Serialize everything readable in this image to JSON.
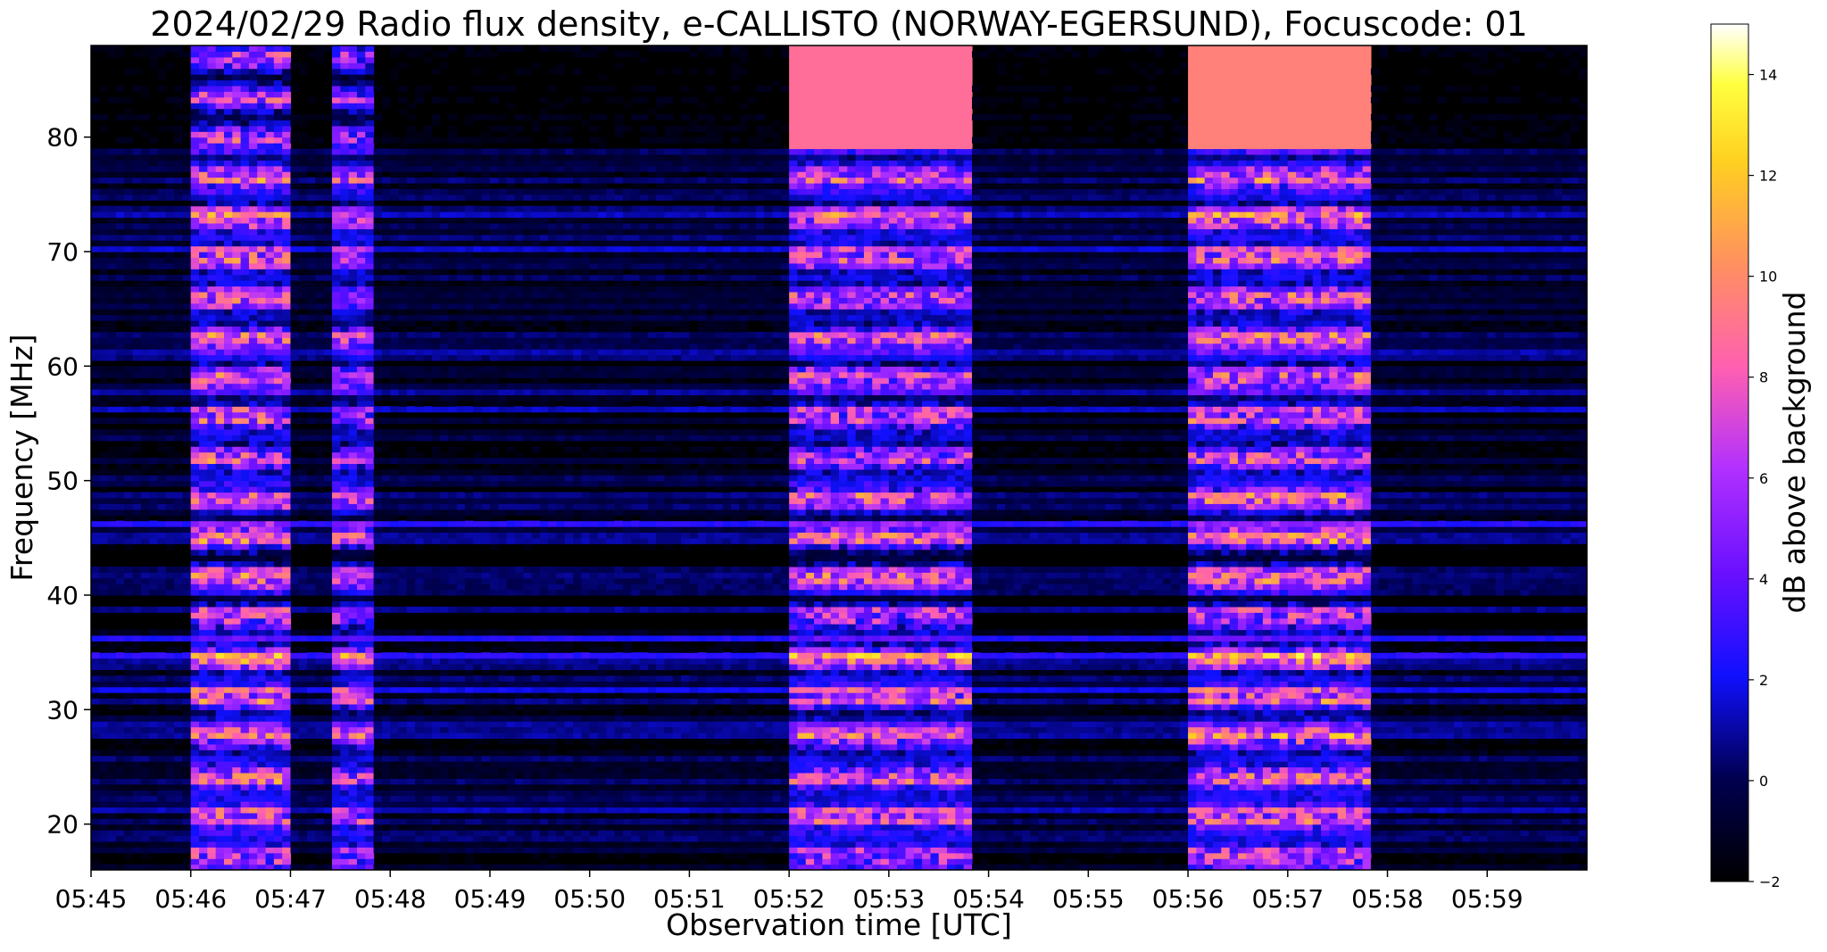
{
  "chart_data": {
    "type": "heatmap",
    "title": "2024/02/29  Radio flux density, e-CALLISTO (NORWAY-EGERSUND), Focuscode: 01",
    "xlabel": "Observation time [UTC]",
    "ylabel": "Frequency [MHz]",
    "x_ticks": [
      "05:45",
      "05:46",
      "05:47",
      "05:48",
      "05:49",
      "05:50",
      "05:51",
      "05:52",
      "05:53",
      "05:54",
      "05:55",
      "05:56",
      "05:57",
      "05:58",
      "05:59"
    ],
    "xlim_minutes_after_0545": [
      0,
      15
    ],
    "y_ticks": [
      20,
      30,
      40,
      50,
      60,
      70,
      80
    ],
    "ylim": [
      16,
      88
    ],
    "colorbar": {
      "label": "dB above background",
      "ticks": [
        -2,
        0,
        2,
        4,
        6,
        8,
        10,
        12,
        14
      ],
      "range": [
        -2,
        15
      ],
      "colormap": "gnuplot2"
    },
    "bursts": [
      {
        "start": "05:46:00",
        "end": "05:47:00",
        "intensity_db": 12
      },
      {
        "start": "05:47:26",
        "end": "05:47:50",
        "intensity_db": 10
      },
      {
        "start": "05:52:00",
        "end": "05:53:50",
        "intensity_db": 11
      },
      {
        "start": "05:56:00",
        "end": "05:57:50",
        "intensity_db": 12
      }
    ]
  }
}
